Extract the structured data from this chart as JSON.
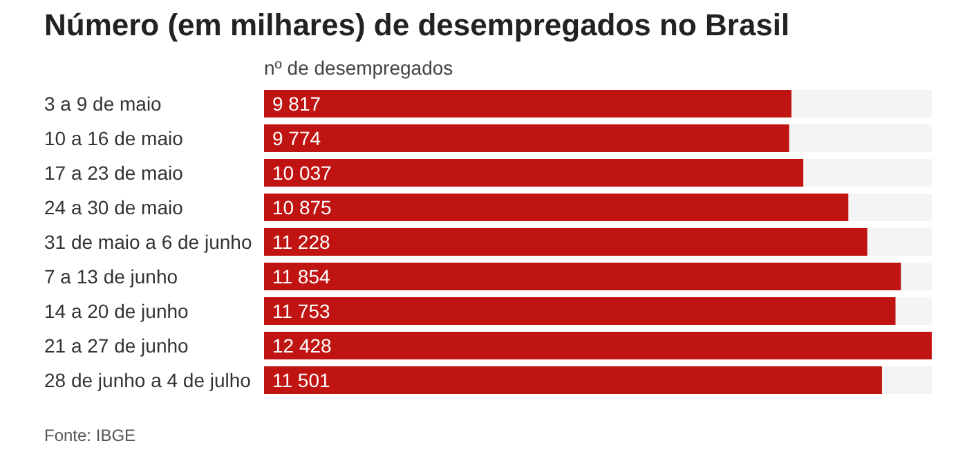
{
  "chart_data": {
    "type": "bar",
    "orientation": "horizontal",
    "title": "Número (em milhares) de desempregados no Brasil",
    "xlabel": "nº de desempregados",
    "categories": [
      "3 a 9 de maio",
      "10 a 16 de maio",
      "17 a 23 de maio",
      "24 a 30 de maio",
      "31 de maio a 6 de junho",
      "7 a 13 de junho",
      "14 a 20 de junho",
      "21 a 27 de junho",
      "28 de junho a 4 de julho"
    ],
    "values": [
      9817,
      9774,
      10037,
      10875,
      11228,
      11854,
      11753,
      12428,
      11501
    ],
    "value_labels": [
      "9 817",
      "9 774",
      "10 037",
      "10 875",
      "11 228",
      "11 854",
      "11 753",
      "12 428",
      "11 501"
    ],
    "color": "#bf1411",
    "xlim": [
      0,
      12428
    ],
    "tick_labels": "y",
    "grid": false,
    "annotations": [
      "Fonte: IBGE"
    ]
  }
}
